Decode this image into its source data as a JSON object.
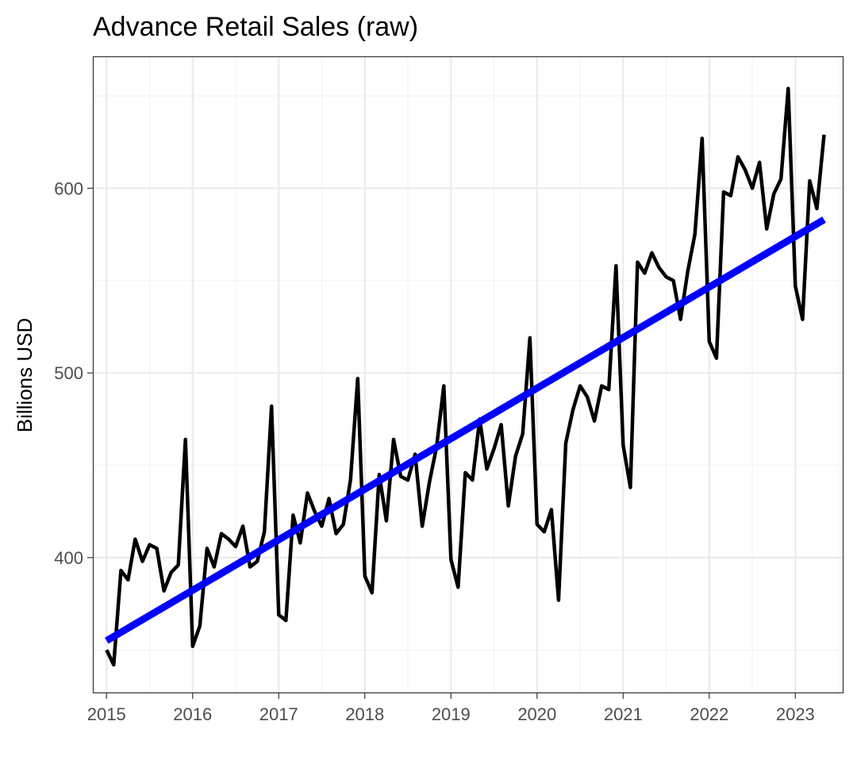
{
  "chart_data": {
    "type": "line",
    "title": "Advance Retail Sales (raw)",
    "xlabel": "",
    "ylabel": "Billions USD",
    "xlim": [
      2014.85,
      2023.55
    ],
    "ylim": [
      327,
      671
    ],
    "x_ticks": [
      {
        "value": 2015,
        "label": "2015"
      },
      {
        "value": 2016,
        "label": "2016"
      },
      {
        "value": 2017,
        "label": "2017"
      },
      {
        "value": 2018,
        "label": "2018"
      },
      {
        "value": 2019,
        "label": "2019"
      },
      {
        "value": 2020,
        "label": "2020"
      },
      {
        "value": 2021,
        "label": "2021"
      },
      {
        "value": 2022,
        "label": "2022"
      },
      {
        "value": 2023,
        "label": "2023"
      }
    ],
    "y_ticks": [
      {
        "value": 400,
        "label": "400"
      },
      {
        "value": 500,
        "label": "500"
      },
      {
        "value": 600,
        "label": "600"
      }
    ],
    "grid": true,
    "legend": "none",
    "series": [
      {
        "color": "#000000",
        "start": "2015-01",
        "frequency": "monthly",
        "values": [
          350,
          342,
          393,
          388,
          410,
          398,
          407,
          405,
          382,
          392,
          396,
          464,
          352,
          363,
          405,
          395,
          413,
          410,
          406,
          417,
          395,
          398,
          414,
          482,
          369,
          366,
          423,
          408,
          435,
          425,
          417,
          432,
          413,
          418,
          442,
          497,
          390,
          381,
          445,
          420,
          464,
          444,
          442,
          456,
          417,
          441,
          460,
          493,
          399,
          384,
          446,
          442,
          475,
          448,
          459,
          472,
          428,
          455,
          467,
          519,
          418,
          414,
          426,
          377,
          462,
          480,
          493,
          487,
          474,
          493,
          491,
          558,
          461,
          438,
          560,
          554,
          565,
          557,
          552,
          550,
          529,
          555,
          575,
          627,
          517,
          508,
          598,
          596,
          617,
          610,
          600,
          614,
          578,
          597,
          605,
          654,
          547,
          529,
          604,
          589,
          629
        ]
      },
      {
        "color": "#0000ff",
        "kind": "linear-trend",
        "points": [
          {
            "x": "2015-01",
            "y": 355
          },
          {
            "x": "2023-05",
            "y": 583
          }
        ]
      }
    ]
  }
}
